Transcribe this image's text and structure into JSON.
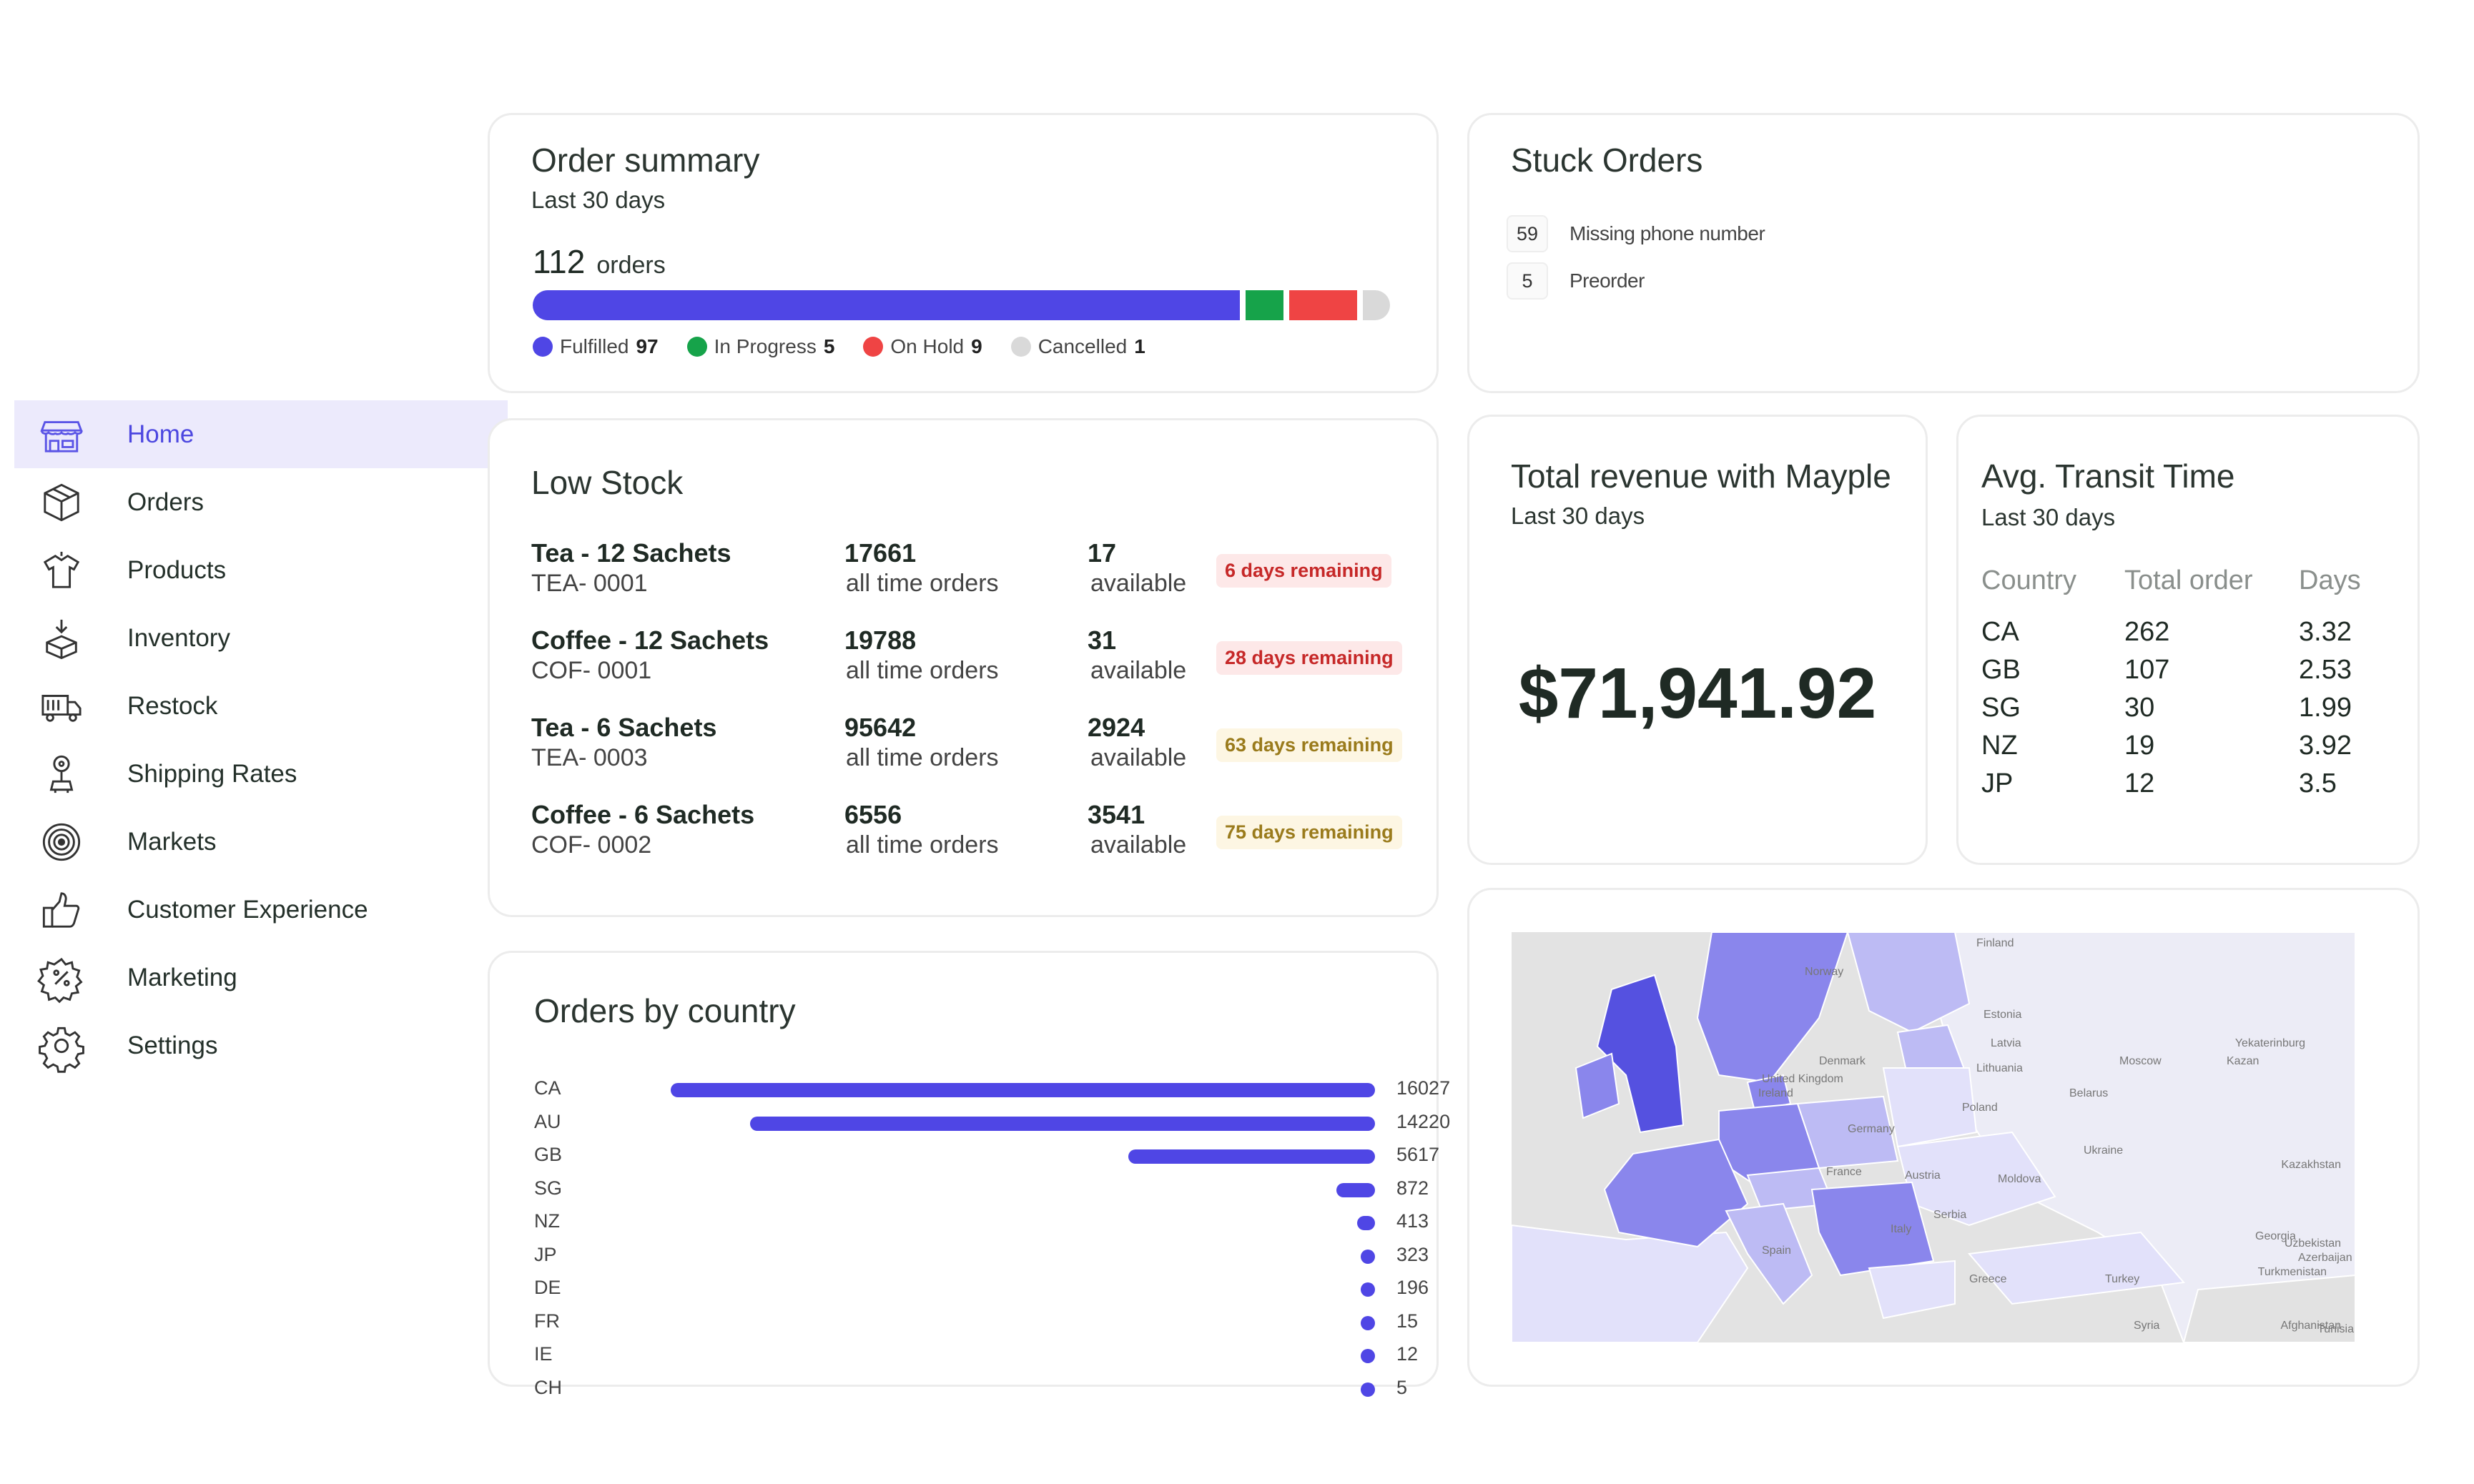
{
  "sidebar": {
    "items": [
      {
        "label": "Home",
        "icon": "store-icon",
        "active": true
      },
      {
        "label": "Orders",
        "icon": "box-icon"
      },
      {
        "label": "Products",
        "icon": "shirt-icon"
      },
      {
        "label": "Inventory",
        "icon": "boxes-icon"
      },
      {
        "label": "Restock",
        "icon": "truck-icon"
      },
      {
        "label": "Shipping Rates",
        "icon": "shipping-icon"
      },
      {
        "label": "Markets",
        "icon": "target-icon"
      },
      {
        "label": "Customer Experience",
        "icon": "thumbs-up-icon"
      },
      {
        "label": "Marketing",
        "icon": "discount-badge-icon"
      },
      {
        "label": "Settings",
        "icon": "gear-icon"
      }
    ]
  },
  "order_summary": {
    "title": "Order summary",
    "subtitle": "Last 30 days",
    "total": "112",
    "total_unit": "orders",
    "segments": [
      {
        "label": "Fulfilled",
        "value": 97,
        "color": "#4f46e5"
      },
      {
        "label": "In Progress",
        "value": 5,
        "color": "#16a34a"
      },
      {
        "label": "On Hold",
        "value": 9,
        "color": "#ef4444"
      },
      {
        "label": "Cancelled",
        "value": 1,
        "color": "#d9d9d9"
      }
    ]
  },
  "stuck_orders": {
    "title": "Stuck Orders",
    "items": [
      {
        "count": "59",
        "label": "Missing phone number"
      },
      {
        "count": "5",
        "label": "Preorder"
      }
    ]
  },
  "low_stock": {
    "title": "Low Stock",
    "orders_label": "all time orders",
    "available_label": "available",
    "items": [
      {
        "name": "Tea - 12 Sachets",
        "sku": "TEA- 0001",
        "orders": "17661",
        "available": "17",
        "badge": "6 days remaining",
        "badge_level": "red"
      },
      {
        "name": "Coffee - 12 Sachets",
        "sku": "COF- 0001",
        "orders": "19788",
        "available": "31",
        "badge": "28 days remaining",
        "badge_level": "red"
      },
      {
        "name": "Tea - 6 Sachets",
        "sku": "TEA- 0003",
        "orders": "95642",
        "available": "2924",
        "badge": "63 days remaining",
        "badge_level": "amber"
      },
      {
        "name": "Coffee - 6 Sachets",
        "sku": "COF- 0002",
        "orders": "6556",
        "available": "3541",
        "badge": "75 days remaining",
        "badge_level": "amber"
      }
    ],
    "badge_colors": {
      "red": {
        "bg": "#fde8e8",
        "fg": "#c62828"
      },
      "amber": {
        "bg": "#fdf6e3",
        "fg": "#9a7b1c"
      }
    }
  },
  "orders_by_country": {
    "title": "Orders by country",
    "max": 16027,
    "rows": [
      {
        "code": "CA",
        "value": 16027
      },
      {
        "code": "AU",
        "value": 14220
      },
      {
        "code": "GB",
        "value": 5617
      },
      {
        "code": "SG",
        "value": 872
      },
      {
        "code": "NZ",
        "value": 413
      },
      {
        "code": "JP",
        "value": 323
      },
      {
        "code": "DE",
        "value": 196
      },
      {
        "code": "FR",
        "value": 15
      },
      {
        "code": "IE",
        "value": 12
      },
      {
        "code": "CH",
        "value": 5
      }
    ]
  },
  "revenue": {
    "title": "Total revenue with Mayple",
    "subtitle": "Last 30 days",
    "value": "$71,941.92"
  },
  "transit": {
    "title": "Avg. Transit Time",
    "subtitle": "Last 30 days",
    "headers": [
      "Country",
      "Total order",
      "Days"
    ],
    "rows": [
      [
        "CA",
        "262",
        "3.32"
      ],
      [
        "GB",
        "107",
        "2.53"
      ],
      [
        "SG",
        "30",
        "1.99"
      ],
      [
        "NZ",
        "19",
        "3.92"
      ],
      [
        "JP",
        "12",
        "3.5"
      ]
    ]
  },
  "map": {
    "labels": [
      "Finland",
      "Norway",
      "Estonia",
      "Latvia",
      "Lithuania",
      "Denmark",
      "United Kingdom",
      "Ireland",
      "Belarus",
      "Poland",
      "Germany",
      "Moscow",
      "Kazan",
      "Yekaterinburg",
      "Ukraine",
      "Moldova",
      "France",
      "Austria",
      "Italy",
      "Serbia",
      "Spain",
      "Greece",
      "Turkey",
      "Georgia",
      "Azerbaijan",
      "Turkmenistan",
      "Uzbekistan",
      "Tunisia",
      "Syria",
      "Afghanistan",
      "Kazakhstan"
    ],
    "colors": {
      "dark": "#5551e0",
      "mid": "#8a86ec",
      "light": "#bdbbf4",
      "pale": "#e2e1fa",
      "land": "#ececf6",
      "water": "#e2e2e2"
    }
  }
}
